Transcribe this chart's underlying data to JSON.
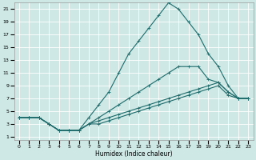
{
  "xlabel": "Humidex (Indice chaleur)",
  "background_color": "#cde8e5",
  "grid_color": "#ffffff",
  "line_color": "#1e6b6b",
  "xlim": [
    -0.5,
    23.5
  ],
  "ylim": [
    0.5,
    22
  ],
  "xticks": [
    0,
    1,
    2,
    3,
    4,
    5,
    6,
    7,
    8,
    9,
    10,
    11,
    12,
    13,
    14,
    15,
    16,
    17,
    18,
    19,
    20,
    21,
    22,
    23
  ],
  "yticks": [
    1,
    3,
    5,
    7,
    9,
    11,
    13,
    15,
    17,
    19,
    21
  ],
  "curve_tall_x": [
    0,
    1,
    2,
    3,
    4,
    5,
    6,
    7,
    8,
    9,
    10,
    11,
    12,
    13,
    14,
    15,
    16,
    17,
    18,
    19,
    20,
    21,
    22,
    23
  ],
  "curve_tall_y": [
    4,
    4,
    4,
    3,
    2,
    2,
    2,
    4,
    6,
    8,
    11,
    14,
    16,
    18,
    20,
    22,
    21,
    19,
    17,
    14,
    12,
    9,
    7,
    7
  ],
  "curve_mid_x": [
    0,
    1,
    2,
    3,
    4,
    5,
    6,
    7,
    8,
    9,
    10,
    11,
    12,
    13,
    14,
    15,
    16,
    17,
    18,
    19,
    20,
    21,
    22,
    23
  ],
  "curve_mid_y": [
    4,
    4,
    4,
    3,
    2,
    2,
    2,
    3,
    4,
    5,
    6,
    7,
    8,
    9,
    10,
    11,
    12,
    12,
    12,
    10,
    9.5,
    8,
    7,
    7
  ],
  "curve_low1_x": [
    0,
    1,
    2,
    3,
    4,
    5,
    6,
    7,
    8,
    9,
    10,
    11,
    12,
    13,
    14,
    15,
    16,
    17,
    18,
    19,
    20,
    21,
    22,
    23
  ],
  "curve_low1_y": [
    4,
    4,
    4,
    3,
    2,
    2,
    2,
    3,
    3.5,
    4,
    4.5,
    5,
    5.5,
    6,
    6.5,
    7,
    7.5,
    8,
    8.5,
    9,
    9.5,
    8,
    7,
    7
  ],
  "curve_low2_x": [
    0,
    1,
    2,
    3,
    4,
    5,
    6,
    7,
    8,
    9,
    10,
    11,
    12,
    13,
    14,
    15,
    16,
    17,
    18,
    19,
    20,
    21,
    22,
    23
  ],
  "curve_low2_y": [
    4,
    4,
    4,
    3,
    2,
    2,
    2,
    3,
    3,
    3.5,
    4,
    4.5,
    5,
    5.5,
    6,
    6.5,
    7,
    7.5,
    8,
    8.5,
    9,
    7.5,
    7,
    7
  ]
}
